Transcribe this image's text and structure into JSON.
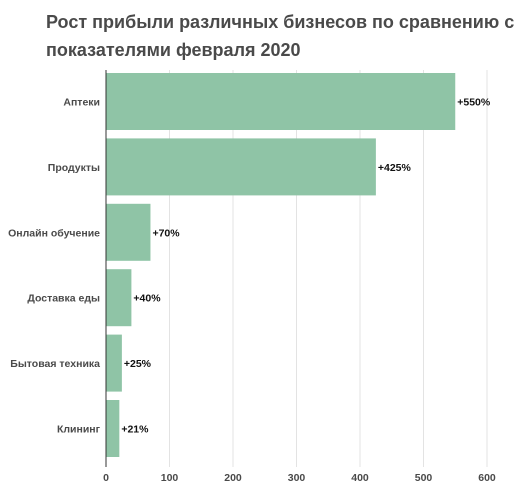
{
  "chart_data": {
    "type": "bar",
    "orientation": "horizontal",
    "title": "Рост прибыли различных бизнесов по сравнению с показателями февраля 2020",
    "categories": [
      "Аптеки",
      "Продукты",
      "Онлайн обучение",
      "Доставка еды",
      "Бытовая техника",
      "Клининг"
    ],
    "values": [
      550,
      425,
      70,
      40,
      25,
      21
    ],
    "data_labels": [
      "+550%",
      "+425%",
      "+70%",
      "+40%",
      "+25%",
      "+21%"
    ],
    "xlim": [
      0,
      600
    ],
    "x_ticks": [
      0,
      100,
      200,
      300,
      400,
      500,
      600
    ],
    "x_tick_labels": [
      "0",
      "100",
      "200",
      "300",
      "400",
      "500",
      "600"
    ],
    "grid": true,
    "bar_color": "#8fc4a6"
  }
}
